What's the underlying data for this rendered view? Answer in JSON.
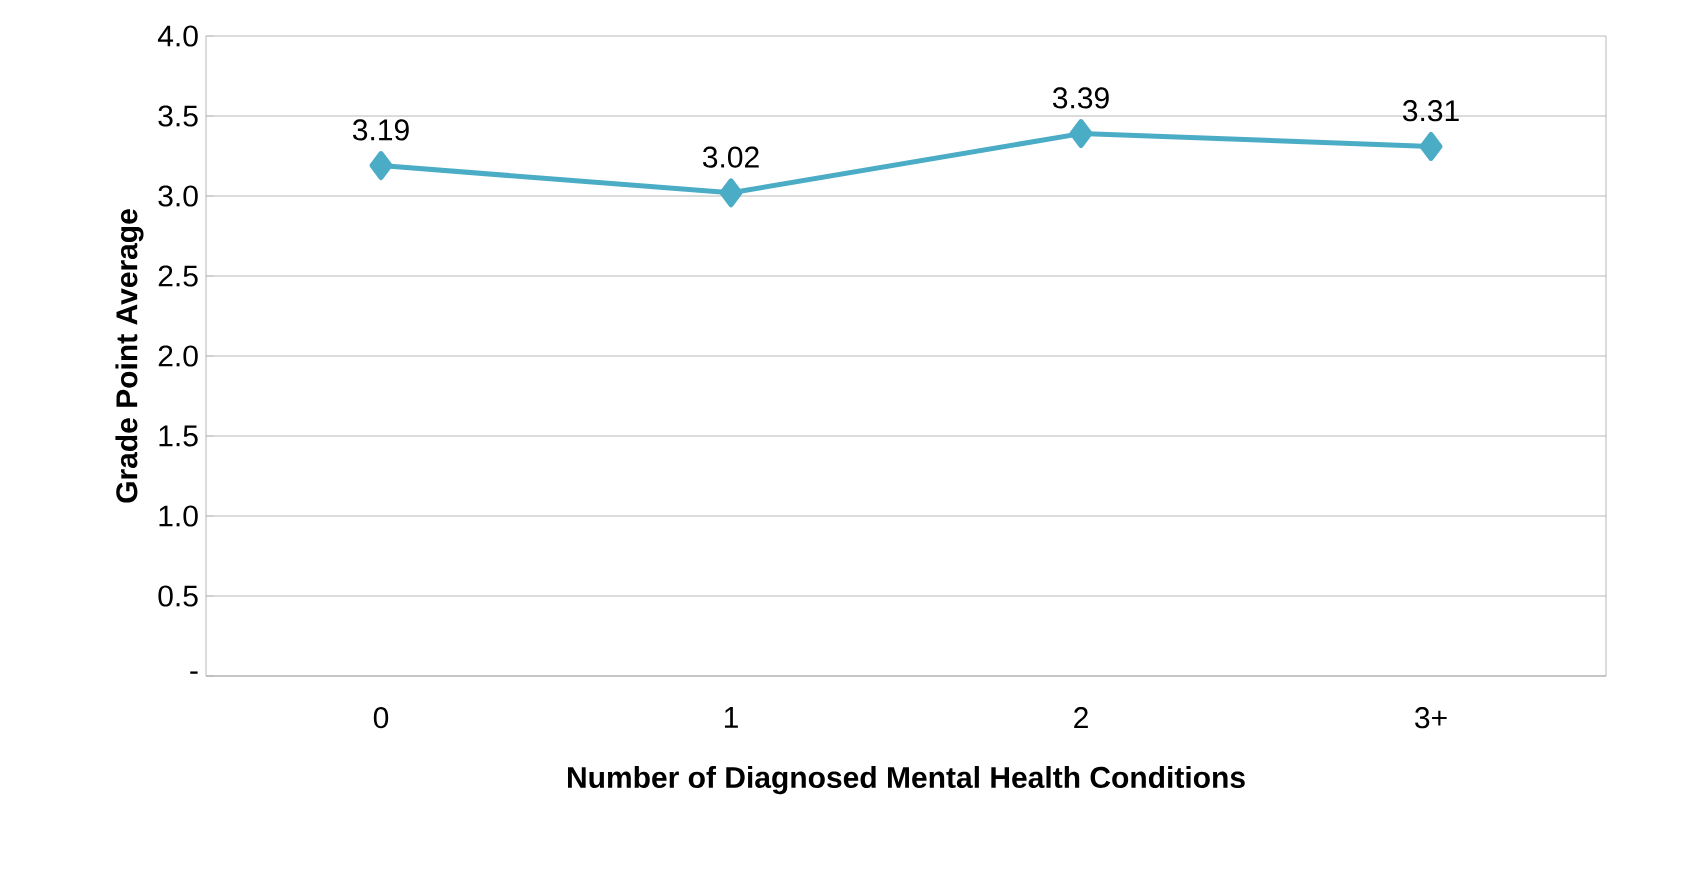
{
  "chart_data": {
    "type": "line",
    "xlabel": "Number of Diagnosed Mental Health Conditions",
    "ylabel": "Grade Point Average",
    "categories": [
      "0",
      "1",
      "2",
      "3+"
    ],
    "values": [
      3.19,
      3.02,
      3.39,
      3.31
    ],
    "value_labels": [
      "3.19",
      "3.02",
      "3.39",
      "3.31"
    ],
    "color": "#4bacc6",
    "marker": "diamond",
    "line_style": "solid",
    "grid": "y",
    "ylim": [
      0,
      4
    ],
    "yticks": [
      {
        "value": 0,
        "label": "-"
      },
      {
        "value": 0.5,
        "label": "0.5"
      },
      {
        "value": 1,
        "label": "1.0"
      },
      {
        "value": 1.5,
        "label": "1.5"
      },
      {
        "value": 2,
        "label": "2.0"
      },
      {
        "value": 2.5,
        "label": "2.5"
      },
      {
        "value": 3,
        "label": "3.0"
      },
      {
        "value": 3.5,
        "label": "3.5"
      },
      {
        "value": 4,
        "label": "4.0"
      }
    ]
  }
}
